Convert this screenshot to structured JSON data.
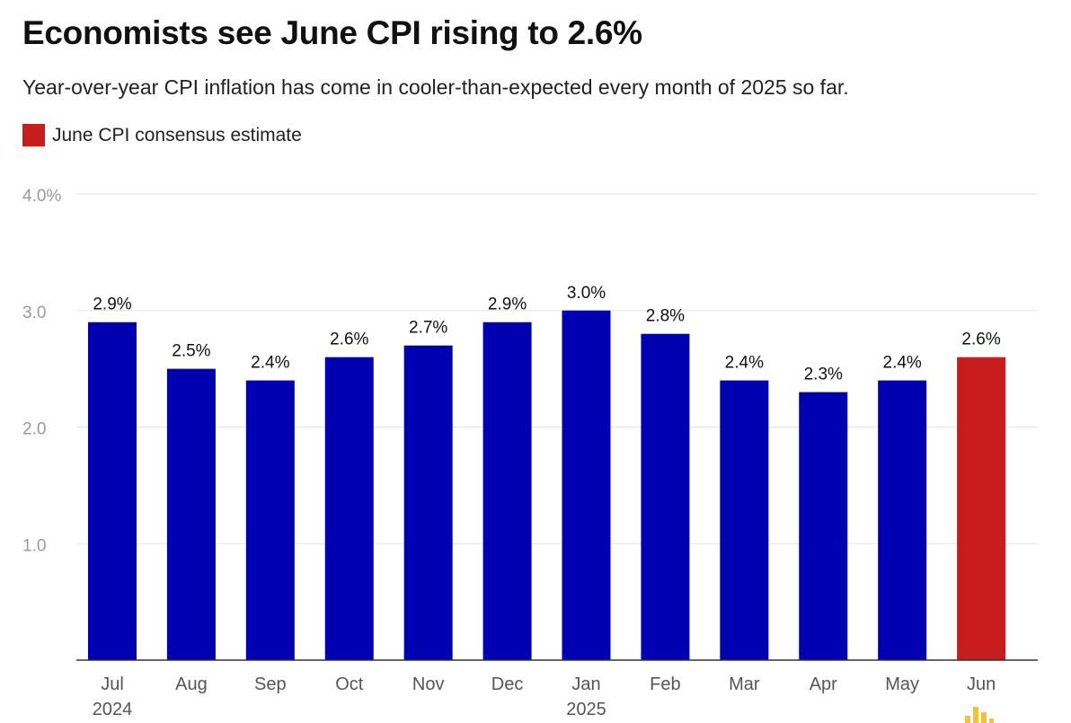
{
  "title": "Economists see June CPI rising to 2.6%",
  "subtitle": "Year-over-year CPI inflation has come in cooler-than-expected every month of 2025 so far.",
  "legend": {
    "label": "June CPI consensus estimate",
    "color": "#c81d1d"
  },
  "colors": {
    "bar": "#0000b3",
    "highlight": "#c81d1d",
    "grid": "#e3e3e3",
    "tick_label": "#999999",
    "axis_label": "#555555"
  },
  "logo_icon": "logo-bars-icon",
  "chart_data": {
    "type": "bar",
    "title": "Economists see June CPI rising to 2.6%",
    "xlabel": "",
    "ylabel": "",
    "categories": [
      "Jul",
      "Aug",
      "Sep",
      "Oct",
      "Nov",
      "Dec",
      "Jan",
      "Feb",
      "Mar",
      "Apr",
      "May",
      "Jun"
    ],
    "year_labels": [
      "2024",
      "",
      "",
      "",
      "",
      "",
      "2025",
      "",
      "",
      "",
      "",
      ""
    ],
    "values": [
      2.9,
      2.5,
      2.4,
      2.6,
      2.7,
      2.9,
      3.0,
      2.8,
      2.4,
      2.3,
      2.4,
      2.6
    ],
    "data_labels": [
      "2.9%",
      "2.5%",
      "2.4%",
      "2.6%",
      "2.7%",
      "2.9%",
      "3.0%",
      "2.8%",
      "2.4%",
      "2.3%",
      "2.4%",
      "2.6%"
    ],
    "highlight": [
      false,
      false,
      false,
      false,
      false,
      false,
      false,
      false,
      false,
      false,
      false,
      true
    ],
    "ylim": [
      0,
      4.0
    ],
    "yticks": [
      1.0,
      2.0,
      3.0,
      4.0
    ],
    "ytick_labels": [
      "1.0",
      "2.0",
      "3.0",
      "4.0%"
    ],
    "grid": true,
    "legend_position": "top-left"
  }
}
